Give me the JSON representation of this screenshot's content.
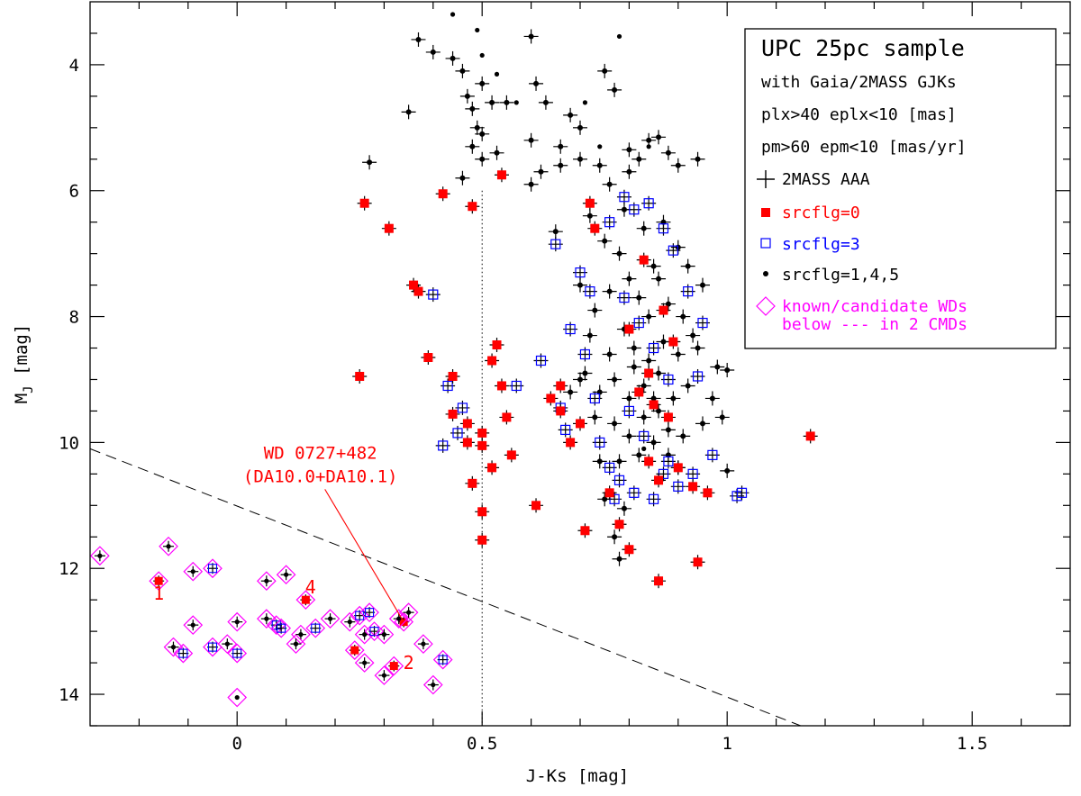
{
  "chart_data": {
    "type": "scatter",
    "xlabel": "J-Ks [mag]",
    "ylabel": "M",
    "ylabel_sub": "J",
    "ylabel_unit": " [mag]",
    "xlim": [
      -0.3,
      1.7
    ],
    "ylim": [
      14.5,
      3.0
    ],
    "y_inverted": true,
    "x_ticks": [
      0,
      0.5,
      1,
      1.5
    ],
    "x_tick_labels": [
      "0",
      "0.5",
      "1",
      "1.5"
    ],
    "y_ticks": [
      4,
      6,
      8,
      10,
      12,
      14
    ],
    "y_tick_labels": [
      "4",
      "6",
      "8",
      "10",
      "12",
      "14"
    ],
    "legend": {
      "position": "top-right",
      "title": "UPC 25pc sample",
      "subtitle_lines": [
        "with Gaia/2MASS GJKs",
        "plx>40 eplx<10 [mas]",
        "pm>60 epm<10 [mas/yr]"
      ],
      "entries": [
        {
          "marker": "cross",
          "label": "2MASS AAA",
          "color": "#000000"
        },
        {
          "marker": "filled-square",
          "label": "srcflg=0",
          "color": "#ff0000"
        },
        {
          "marker": "open-square",
          "label": "srcflg=3",
          "color": "#0000ff"
        },
        {
          "marker": "dot",
          "label": "srcflg=1,4,5",
          "color": "#000000"
        },
        {
          "marker": "diamond",
          "label": "known/candidate WDs",
          "label2": "below --- in 2 CMDs",
          "color": "#ff00ff"
        }
      ]
    },
    "reference_lines": [
      {
        "style": "dotted",
        "x": [
          0.5,
          0.5
        ],
        "y": [
          6.0,
          14.5
        ]
      },
      {
        "style": "dashed",
        "x": [
          -0.3,
          1.15
        ],
        "y": [
          10.1,
          14.5
        ]
      }
    ],
    "annotations": [
      {
        "text": "WD 0727+482",
        "text2": "(DA10.0+DA10.1)",
        "x": 0.17,
        "y": 10.4,
        "arrow_to": [
          0.34,
          12.85
        ],
        "color": "#ff0000"
      },
      {
        "text": "1",
        "x": -0.16,
        "y": 12.5,
        "color": "#ff0000"
      },
      {
        "text": "2",
        "x": 0.35,
        "y": 13.6,
        "color": "#ff0000"
      },
      {
        "text": "4",
        "x": 0.15,
        "y": 12.4,
        "color": "#ff0000"
      }
    ],
    "series": [
      {
        "name": "2MASS AAA (black)",
        "marker": "cross-dot",
        "color": "#000000",
        "points": [
          [
            0.37,
            3.6
          ],
          [
            0.4,
            3.8
          ],
          [
            0.44,
            3.9
          ],
          [
            0.46,
            4.1
          ],
          [
            0.47,
            4.5
          ],
          [
            0.48,
            4.7
          ],
          [
            0.5,
            4.3
          ],
          [
            0.52,
            4.6
          ],
          [
            0.55,
            4.6
          ],
          [
            0.35,
            4.75
          ],
          [
            0.6,
            3.55
          ],
          [
            0.61,
            4.3
          ],
          [
            0.63,
            4.6
          ],
          [
            0.6,
            5.2
          ],
          [
            0.68,
            4.8
          ],
          [
            0.7,
            5.0
          ],
          [
            0.75,
            4.1
          ],
          [
            0.77,
            4.4
          ],
          [
            0.49,
            5.0
          ],
          [
            0.5,
            5.1
          ],
          [
            0.48,
            5.3
          ],
          [
            0.5,
            5.5
          ],
          [
            0.46,
            5.8
          ],
          [
            0.53,
            5.4
          ],
          [
            0.6,
            5.9
          ],
          [
            0.62,
            5.7
          ],
          [
            0.66,
            5.6
          ],
          [
            0.7,
            5.5
          ],
          [
            0.74,
            5.6
          ],
          [
            0.66,
            5.3
          ],
          [
            0.27,
            5.55
          ],
          [
            0.65,
            6.65
          ],
          [
            0.76,
            5.9
          ],
          [
            0.8,
            5.7
          ],
          [
            0.82,
            5.5
          ],
          [
            0.84,
            5.2
          ],
          [
            0.86,
            5.15
          ],
          [
            0.88,
            5.4
          ],
          [
            0.9,
            5.6
          ],
          [
            0.94,
            5.5
          ],
          [
            0.8,
            5.35
          ],
          [
            0.72,
            6.4
          ],
          [
            0.75,
            6.8
          ],
          [
            0.79,
            6.3
          ],
          [
            0.83,
            6.6
          ],
          [
            0.87,
            6.5
          ],
          [
            0.9,
            6.9
          ],
          [
            0.92,
            7.2
          ],
          [
            0.95,
            7.5
          ],
          [
            0.7,
            7.5
          ],
          [
            0.73,
            7.9
          ],
          [
            0.76,
            7.6
          ],
          [
            0.8,
            7.4
          ],
          [
            0.82,
            7.7
          ],
          [
            0.85,
            7.2
          ],
          [
            0.88,
            7.8
          ],
          [
            0.91,
            8.0
          ],
          [
            0.93,
            8.3
          ],
          [
            0.72,
            8.3
          ],
          [
            0.76,
            8.6
          ],
          [
            0.79,
            8.2
          ],
          [
            0.81,
            8.5
          ],
          [
            0.84,
            8.7
          ],
          [
            0.87,
            8.4
          ],
          [
            0.9,
            8.6
          ],
          [
            0.94,
            8.5
          ],
          [
            0.71,
            8.9
          ],
          [
            0.74,
            9.2
          ],
          [
            0.77,
            9.0
          ],
          [
            0.8,
            9.3
          ],
          [
            0.83,
            9.1
          ],
          [
            0.86,
            8.9
          ],
          [
            0.89,
            9.3
          ],
          [
            0.92,
            9.1
          ],
          [
            0.98,
            8.8
          ],
          [
            1.0,
            8.85
          ],
          [
            0.97,
            9.3
          ],
          [
            0.99,
            9.6
          ],
          [
            0.73,
            9.6
          ],
          [
            0.77,
            9.7
          ],
          [
            0.8,
            9.9
          ],
          [
            0.83,
            9.6
          ],
          [
            0.86,
            9.5
          ],
          [
            0.88,
            9.8
          ],
          [
            0.91,
            9.9
          ],
          [
            0.95,
            9.7
          ],
          [
            0.78,
            10.3
          ],
          [
            0.82,
            10.2
          ],
          [
            0.85,
            10.0
          ],
          [
            0.9,
            10.4
          ],
          [
            1.0,
            10.45
          ],
          [
            0.75,
            10.9
          ],
          [
            0.79,
            11.05
          ],
          [
            0.68,
            9.2
          ],
          [
            0.7,
            9.0
          ],
          [
            0.78,
            7.0
          ],
          [
            0.84,
            8.0
          ],
          [
            0.86,
            7.4
          ],
          [
            0.81,
            8.8
          ],
          [
            0.85,
            9.3
          ],
          [
            0.88,
            10.2
          ],
          [
            0.74,
            10.3
          ],
          [
            0.77,
            11.5
          ],
          [
            0.78,
            11.85
          ]
        ]
      },
      {
        "name": "srcflg=1,4,5 (bare dots)",
        "marker": "dot",
        "color": "#000000",
        "points": [
          [
            0.44,
            3.2
          ],
          [
            0.49,
            3.45
          ],
          [
            0.5,
            3.85
          ],
          [
            0.53,
            4.15
          ],
          [
            0.57,
            4.6
          ],
          [
            0.78,
            3.55
          ],
          [
            0.71,
            4.6
          ],
          [
            0.84,
            5.3
          ],
          [
            0.74,
            5.3
          ],
          [
            0.83,
            10.1
          ]
        ]
      },
      {
        "name": "srcflg=3",
        "marker": "open-square-cross",
        "color": "#0000ff",
        "points": [
          [
            0.4,
            7.65
          ],
          [
            0.43,
            9.1
          ],
          [
            0.46,
            9.45
          ],
          [
            0.45,
            9.85
          ],
          [
            0.42,
            10.05
          ],
          [
            0.57,
            9.1
          ],
          [
            0.62,
            8.7
          ],
          [
            0.65,
            6.85
          ],
          [
            0.7,
            7.3
          ],
          [
            0.72,
            7.6
          ],
          [
            0.68,
            8.2
          ],
          [
            0.71,
            8.6
          ],
          [
            0.73,
            9.3
          ],
          [
            0.74,
            10.0
          ],
          [
            0.76,
            10.4
          ],
          [
            0.77,
            10.9
          ],
          [
            0.76,
            6.5
          ],
          [
            0.79,
            6.1
          ],
          [
            0.81,
            6.3
          ],
          [
            0.84,
            6.2
          ],
          [
            0.87,
            6.6
          ],
          [
            0.89,
            6.95
          ],
          [
            0.92,
            7.6
          ],
          [
            0.95,
            8.1
          ],
          [
            0.94,
            8.95
          ],
          [
            0.97,
            10.2
          ],
          [
            1.02,
            10.85
          ],
          [
            1.03,
            10.8
          ],
          [
            0.79,
            7.7
          ],
          [
            0.82,
            8.1
          ],
          [
            0.85,
            8.5
          ],
          [
            0.88,
            9.0
          ],
          [
            0.8,
            9.5
          ],
          [
            0.83,
            9.9
          ],
          [
            0.87,
            10.5
          ],
          [
            0.9,
            10.7
          ],
          [
            0.93,
            10.5
          ],
          [
            0.78,
            10.6
          ],
          [
            0.81,
            10.8
          ],
          [
            0.85,
            10.9
          ],
          [
            0.88,
            10.3
          ],
          [
            0.66,
            9.45
          ],
          [
            0.67,
            9.8
          ]
        ]
      },
      {
        "name": "srcflg=0",
        "marker": "filled-square-cross",
        "color": "#ff0000",
        "points": [
          [
            0.26,
            6.2
          ],
          [
            0.31,
            6.6
          ],
          [
            0.36,
            7.5
          ],
          [
            0.37,
            7.6
          ],
          [
            0.25,
            8.95
          ],
          [
            0.39,
            8.65
          ],
          [
            0.42,
            6.05
          ],
          [
            0.48,
            6.25
          ],
          [
            0.54,
            5.75
          ],
          [
            0.52,
            8.7
          ],
          [
            0.53,
            8.45
          ],
          [
            0.54,
            9.1
          ],
          [
            0.44,
            8.95
          ],
          [
            0.44,
            9.55
          ],
          [
            0.47,
            9.7
          ],
          [
            0.47,
            10.0
          ],
          [
            0.5,
            9.85
          ],
          [
            0.5,
            10.05
          ],
          [
            0.52,
            10.4
          ],
          [
            0.55,
            9.6
          ],
          [
            0.56,
            10.2
          ],
          [
            0.48,
            10.65
          ],
          [
            0.5,
            11.1
          ],
          [
            0.5,
            11.55
          ],
          [
            0.61,
            11.0
          ],
          [
            0.64,
            9.3
          ],
          [
            0.66,
            9.1
          ],
          [
            0.66,
            9.5
          ],
          [
            0.68,
            10.0
          ],
          [
            0.7,
            9.7
          ],
          [
            0.71,
            11.4
          ],
          [
            0.76,
            10.8
          ],
          [
            0.78,
            11.3
          ],
          [
            0.8,
            11.7
          ],
          [
            0.86,
            12.2
          ],
          [
            0.94,
            11.9
          ],
          [
            0.96,
            10.8
          ],
          [
            0.82,
            9.2
          ],
          [
            0.85,
            9.4
          ],
          [
            0.88,
            9.6
          ],
          [
            0.84,
            10.3
          ],
          [
            0.86,
            10.6
          ],
          [
            0.9,
            10.4
          ],
          [
            0.93,
            10.7
          ],
          [
            0.72,
            6.2
          ],
          [
            0.73,
            6.6
          ],
          [
            1.17,
            9.9
          ],
          [
            0.8,
            8.2
          ],
          [
            0.84,
            8.9
          ],
          [
            0.87,
            7.9
          ],
          [
            0.83,
            7.1
          ],
          [
            0.89,
            8.4
          ]
        ]
      },
      {
        "name": "known/candidate WDs",
        "marker": "diamond",
        "color": "#ff00ff",
        "points": [
          [
            -0.28,
            11.8
          ],
          [
            -0.14,
            11.65
          ],
          [
            -0.16,
            12.2
          ],
          [
            -0.09,
            12.05
          ],
          [
            -0.05,
            12.0
          ],
          [
            -0.13,
            13.25
          ],
          [
            -0.09,
            12.9
          ],
          [
            -0.11,
            13.35
          ],
          [
            -0.05,
            13.25
          ],
          [
            -0.02,
            13.2
          ],
          [
            0.0,
            12.85
          ],
          [
            0.0,
            13.35
          ],
          [
            0.0,
            14.05
          ],
          [
            0.06,
            12.2
          ],
          [
            0.1,
            12.1
          ],
          [
            0.06,
            12.8
          ],
          [
            0.08,
            12.9
          ],
          [
            0.09,
            12.95
          ],
          [
            0.13,
            13.05
          ],
          [
            0.12,
            13.2
          ],
          [
            0.14,
            12.5
          ],
          [
            0.16,
            12.95
          ],
          [
            0.19,
            12.8
          ],
          [
            0.23,
            12.85
          ],
          [
            0.24,
            13.3
          ],
          [
            0.26,
            13.05
          ],
          [
            0.25,
            12.75
          ],
          [
            0.27,
            12.7
          ],
          [
            0.26,
            13.5
          ],
          [
            0.28,
            13.0
          ],
          [
            0.3,
            13.05
          ],
          [
            0.3,
            13.7
          ],
          [
            0.32,
            13.55
          ],
          [
            0.34,
            12.85
          ],
          [
            0.33,
            12.8
          ],
          [
            0.35,
            12.7
          ],
          [
            0.38,
            13.2
          ],
          [
            0.4,
            13.85
          ],
          [
            0.42,
            13.45
          ]
        ],
        "inner": [
          "dot",
          "dot",
          "square",
          "dot",
          "osq",
          "dot",
          "dot",
          "osq",
          "osq",
          "dot",
          "dot",
          "osq",
          "plain",
          "dot",
          "dot",
          "dot",
          "osq",
          "osq",
          "dot",
          "dot",
          "square",
          "osq",
          "dot",
          "dot",
          "square",
          "dot",
          "osq",
          "osq",
          "dot",
          "osq",
          "dot",
          "dot",
          "square",
          "square",
          "dot",
          "dot",
          "dot",
          "dot",
          "osq"
        ]
      }
    ]
  }
}
